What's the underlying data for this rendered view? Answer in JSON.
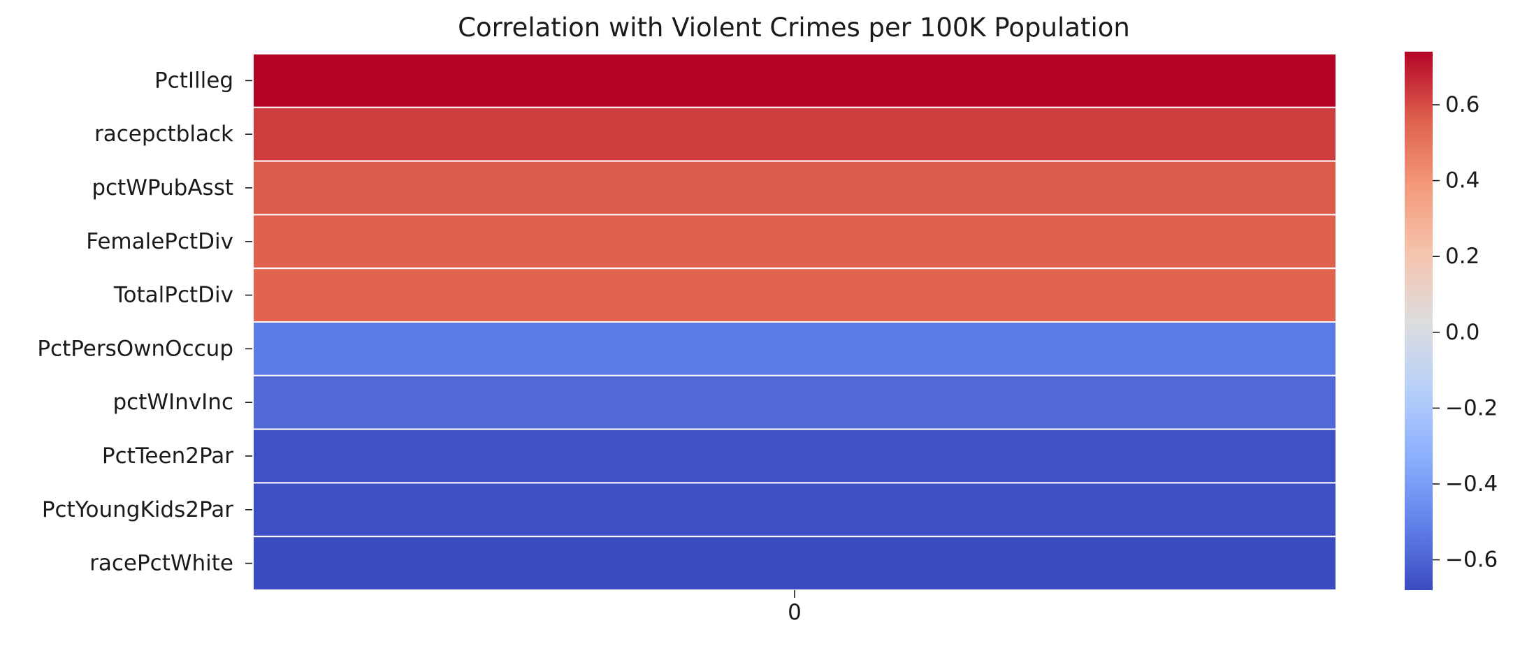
{
  "chart_data": {
    "type": "heatmap",
    "title": "Correlation with Violent Crimes per 100K Population",
    "xlabel": "",
    "ylabel": "",
    "columns": [
      "0"
    ],
    "rows": [
      "PctIlleg",
      "racepctblack",
      "pctWPubAsst",
      "FemalePctDiv",
      "TotalPctDiv",
      "PctPersOwnOccup",
      "pctWInvInc",
      "PctTeen2Par",
      "PctYoungKids2Par",
      "racePctWhite"
    ],
    "values": [
      0.74,
      0.63,
      0.57,
      0.56,
      0.55,
      -0.53,
      -0.58,
      -0.66,
      -0.67,
      -0.68
    ],
    "colormap": "coolwarm",
    "colorbar": {
      "vmin": -0.68,
      "vmax": 0.74,
      "ticks": [
        0.6,
        0.4,
        0.2,
        0.0,
        -0.2,
        -0.4,
        -0.6
      ],
      "tick_labels": [
        "0.6",
        "0.4",
        "0.2",
        "0.0",
        "−0.2",
        "−0.4",
        "−0.6"
      ]
    },
    "cell_separator_color": "#ffffff",
    "grid": false,
    "legend": "colorbar-right"
  }
}
